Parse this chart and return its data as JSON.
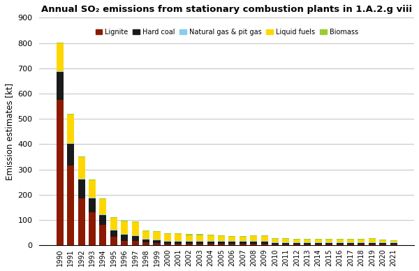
{
  "title": "Annual SO₂ emissions from stationary combustion plants in 1.A.2.g viii",
  "ylabel": "Emission estimates [kt]",
  "ylim": [
    0,
    900
  ],
  "yticks": [
    0,
    100,
    200,
    300,
    400,
    500,
    600,
    700,
    800,
    900
  ],
  "years": [
    1990,
    1991,
    1992,
    1993,
    1994,
    1995,
    1996,
    1997,
    1998,
    1999,
    2000,
    2001,
    2002,
    2003,
    2004,
    2005,
    2006,
    2007,
    2008,
    2009,
    2010,
    2011,
    2012,
    2013,
    2014,
    2015,
    2016,
    2017,
    2018,
    2019,
    2020,
    2021
  ],
  "lignite": [
    575,
    315,
    185,
    130,
    80,
    35,
    18,
    18,
    12,
    10,
    8,
    8,
    8,
    8,
    8,
    8,
    7,
    7,
    8,
    8,
    5,
    5,
    5,
    5,
    5,
    5,
    5,
    5,
    5,
    5,
    5,
    5
  ],
  "hard_coal": [
    110,
    85,
    75,
    55,
    40,
    25,
    25,
    20,
    12,
    10,
    8,
    8,
    8,
    8,
    7,
    7,
    7,
    7,
    7,
    7,
    5,
    5,
    4,
    4,
    4,
    4,
    4,
    4,
    4,
    4,
    4,
    4
  ],
  "nat_gas": [
    3,
    3,
    3,
    3,
    3,
    3,
    3,
    3,
    3,
    3,
    3,
    3,
    3,
    3,
    3,
    3,
    3,
    3,
    3,
    3,
    3,
    3,
    3,
    3,
    3,
    3,
    3,
    3,
    3,
    3,
    3,
    3
  ],
  "liquid": [
    110,
    115,
    85,
    70,
    60,
    45,
    50,
    50,
    30,
    30,
    25,
    25,
    22,
    22,
    22,
    20,
    18,
    18,
    18,
    18,
    12,
    12,
    10,
    10,
    10,
    10,
    10,
    10,
    10,
    14,
    8,
    6
  ],
  "biomass": [
    3,
    3,
    3,
    3,
    3,
    3,
    3,
    3,
    3,
    3,
    3,
    3,
    3,
    3,
    3,
    3,
    3,
    3,
    3,
    3,
    3,
    3,
    3,
    3,
    3,
    3,
    3,
    3,
    3,
    3,
    3,
    3
  ],
  "colors": {
    "lignite": "#8B1A00",
    "hard_coal": "#1a1a1a",
    "nat_gas": "#87CEEB",
    "liquid": "#FFD700",
    "biomass": "#9ACD32"
  },
  "legend_labels": [
    "Lignite",
    "Hard coal",
    "Natural gas & pit gas",
    "Liquid fuels",
    "Biomass"
  ],
  "background_color": "#ffffff",
  "grid_color": "#c8c8c8"
}
